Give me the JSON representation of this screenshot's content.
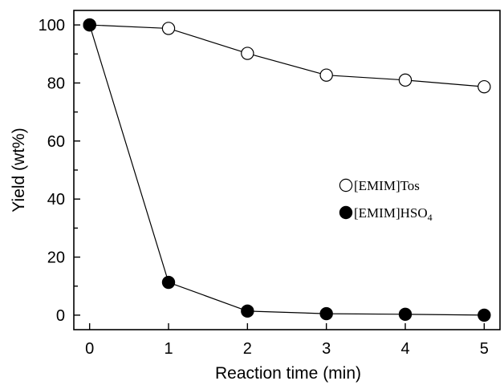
{
  "chart_data": {
    "type": "line",
    "title": "",
    "xlabel": "Reaction time (min)",
    "ylabel": "Yield (wt%)",
    "xlim": [
      -0.2,
      5.2
    ],
    "ylim": [
      -5,
      105
    ],
    "x_ticks": [
      0,
      1,
      2,
      3,
      4,
      5
    ],
    "y_ticks": [
      0,
      20,
      40,
      60,
      80,
      100
    ],
    "x_tick_labels": [
      "0",
      "1",
      "2",
      "3",
      "4",
      "5"
    ],
    "y_tick_labels": [
      "0",
      "20",
      "40",
      "60",
      "80",
      "100"
    ],
    "grid": false,
    "legend_position": "center-right",
    "x": [
      0,
      1,
      2,
      3,
      4,
      5
    ],
    "series": [
      {
        "legend_main": "[EMIM]Tos",
        "legend_sub": "",
        "marker": "open-circle",
        "color": "#000000",
        "values": [
          100,
          98.8,
          90.2,
          82.7,
          81.0,
          78.7
        ]
      },
      {
        "legend_main": "[EMIM]HSO",
        "legend_sub": "4",
        "marker": "filled-circle",
        "color": "#000000",
        "values": [
          100,
          11.3,
          1.4,
          0.5,
          0.3,
          0.0
        ]
      }
    ]
  }
}
